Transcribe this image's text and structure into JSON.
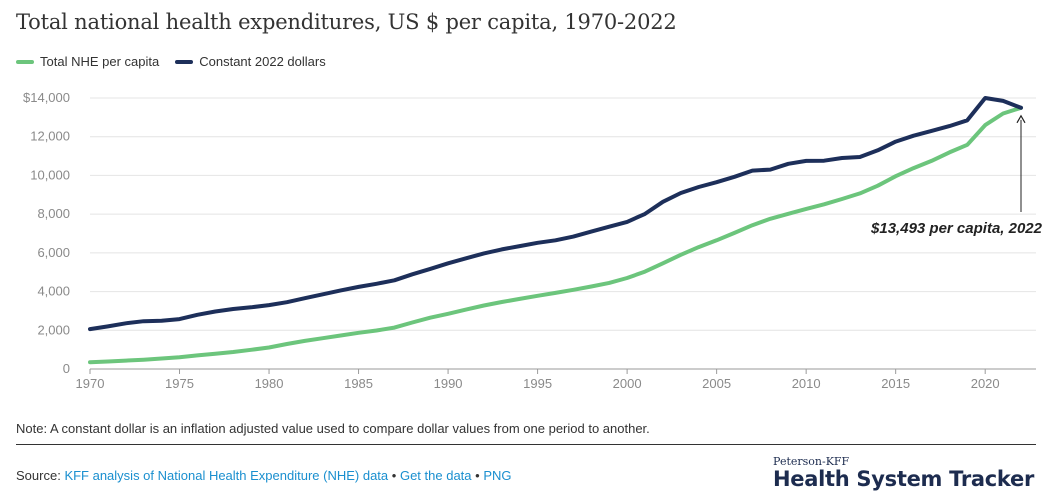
{
  "title": "Total national health expenditures, US $ per capita, 1970-2022",
  "legend": [
    {
      "label": "Total NHE per capita",
      "color": "#6cc57c"
    },
    {
      "label": "Constant 2022 dollars",
      "color": "#1d2f5a"
    }
  ],
  "annotation": "$13,493 per capita, 2022",
  "note": "Note: A constant dollar is an inflation adjusted value used to compare dollar values from one period to another.",
  "source": {
    "prefix": "Source:",
    "link1": "KFF analysis of National Health Expenditure (NHE) data",
    "sep1": "•",
    "link2": "Get the data",
    "sep2": "•",
    "link3": "PNG"
  },
  "brand": {
    "small": "Peterson-KFF",
    "big": "Health System Tracker"
  },
  "chart_data": {
    "type": "line",
    "title": "Total national health expenditures, US $ per capita, 1970-2022",
    "xlim": [
      1970,
      2022
    ],
    "ylim": [
      0,
      14000
    ],
    "x_ticks": [
      1970,
      1975,
      1980,
      1985,
      1990,
      1995,
      2000,
      2005,
      2010,
      2015,
      2020
    ],
    "y_ticks": [
      0,
      2000,
      4000,
      6000,
      8000,
      10000,
      12000,
      14000
    ],
    "y_tick_labels": [
      "0",
      "2,000",
      "4,000",
      "6,000",
      "8,000",
      "10,000",
      "12,000",
      "$14,000"
    ],
    "grid": true,
    "legend_position": "top-left",
    "x": [
      1970,
      1971,
      1972,
      1973,
      1974,
      1975,
      1976,
      1977,
      1978,
      1979,
      1980,
      1981,
      1982,
      1983,
      1984,
      1985,
      1986,
      1987,
      1988,
      1989,
      1990,
      1991,
      1992,
      1993,
      1994,
      1995,
      1996,
      1997,
      1998,
      1999,
      2000,
      2001,
      2002,
      2003,
      2004,
      2005,
      2006,
      2007,
      2008,
      2009,
      2010,
      2011,
      2012,
      2013,
      2014,
      2015,
      2016,
      2017,
      2018,
      2019,
      2020,
      2021,
      2022
    ],
    "series": [
      {
        "name": "Total NHE per capita",
        "color": "#6cc57c",
        "values": [
          353,
          390,
          435,
          480,
          545,
          610,
          700,
          790,
          880,
          990,
          1110,
          1290,
          1450,
          1590,
          1730,
          1870,
          1990,
          2140,
          2400,
          2650,
          2850,
          3070,
          3280,
          3460,
          3620,
          3780,
          3930,
          4090,
          4260,
          4450,
          4700,
          5030,
          5460,
          5900,
          6300,
          6650,
          7030,
          7430,
          7760,
          8020,
          8270,
          8510,
          8780,
          9070,
          9470,
          9960,
          10380,
          10750,
          11190,
          11580,
          12600,
          13200,
          13493
        ]
      },
      {
        "name": "Constant 2022 dollars",
        "color": "#1d2f5a",
        "values": [
          2060,
          2200,
          2360,
          2470,
          2490,
          2580,
          2800,
          2970,
          3100,
          3190,
          3300,
          3450,
          3660,
          3860,
          4060,
          4240,
          4400,
          4580,
          4890,
          5170,
          5460,
          5720,
          5970,
          6180,
          6350,
          6520,
          6650,
          6840,
          7100,
          7350,
          7600,
          8010,
          8640,
          9090,
          9400,
          9650,
          9930,
          10250,
          10300,
          10600,
          10750,
          10760,
          10900,
          10950,
          11300,
          11750,
          12050,
          12300,
          12550,
          12850,
          14000,
          13850,
          13493
        ]
      }
    ]
  }
}
